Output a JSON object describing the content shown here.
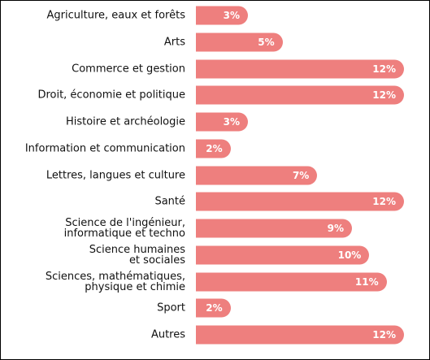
{
  "chart_data": {
    "type": "bar",
    "orientation": "horizontal",
    "color": "#ee7f7e",
    "categories": [
      "Agriculture, eaux et forêts",
      "Arts",
      "Commerce et gestion",
      "Droit, économie et politique",
      "Histoire et archéologie",
      "Information et communication",
      "Lettres, langues et culture",
      "Santé",
      "Science de l'ingénieur,\ninformatique et techno",
      "Science humaines\net sociales",
      "Sciences, mathématiques,\nphysique et chimie",
      "Sport",
      "Autres"
    ],
    "values": [
      3,
      5,
      12,
      12,
      3,
      2,
      7,
      12,
      9,
      10,
      11,
      2,
      12
    ],
    "value_labels": [
      "3%",
      "5%",
      "12%",
      "12%",
      "3%",
      "2%",
      "7%",
      "12%",
      "9%",
      "10%",
      "11%",
      "2%",
      "12%"
    ]
  }
}
